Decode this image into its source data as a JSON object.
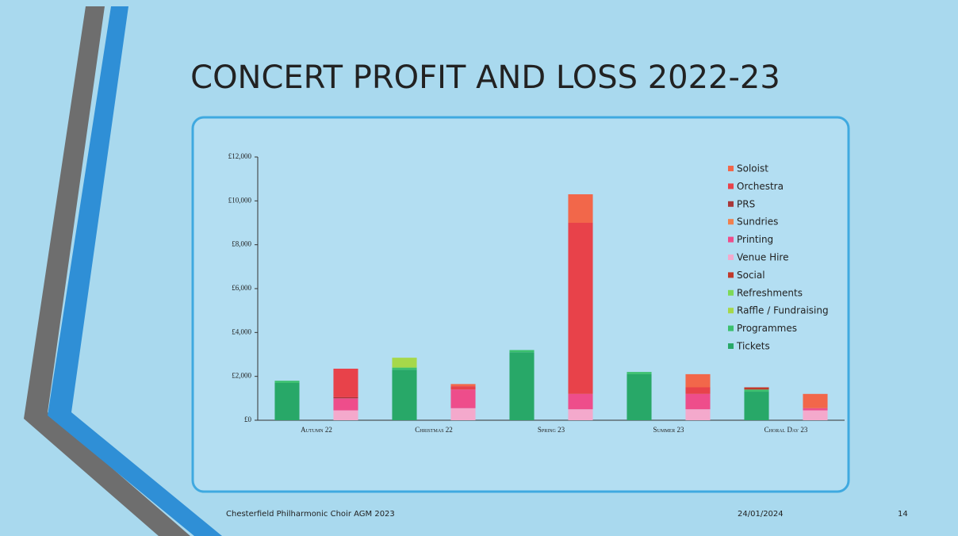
{
  "chart_data": {
    "type": "stacked_bar",
    "title": "CONCERT PROFIT AND LOSS 2022-23",
    "categories": [
      "Autumn 22",
      null,
      "Christmas 22",
      null,
      "Spring 23",
      null,
      "Summer 23",
      null,
      "Choral Day 23",
      null
    ],
    "series": [
      {
        "name": "Soloist",
        "color": "#f2674a",
        "values": [
          0,
          0,
          0,
          100,
          0,
          1300,
          0,
          600,
          0,
          650
        ]
      },
      {
        "name": "Orchestra",
        "color": "#e8424a",
        "values": [
          0,
          1300,
          0,
          150,
          0,
          7800,
          0,
          300,
          0,
          0
        ]
      },
      {
        "name": "PRS",
        "color": "#a8383a",
        "values": [
          0,
          50,
          0,
          0,
          0,
          0,
          0,
          0,
          0,
          0
        ]
      },
      {
        "name": "Sundries",
        "color": "#f0804e",
        "values": [
          0,
          0,
          0,
          0,
          0,
          0,
          0,
          0,
          0,
          0
        ]
      },
      {
        "name": "Printing",
        "color": "#ee4d8b",
        "values": [
          0,
          550,
          0,
          850,
          0,
          700,
          0,
          700,
          0,
          100
        ]
      },
      {
        "name": "Venue Hire",
        "color": "#f4a9cc",
        "values": [
          0,
          450,
          0,
          550,
          0,
          500,
          0,
          500,
          0,
          450
        ]
      },
      {
        "name": "Social",
        "color": "#c0392b",
        "values": [
          0,
          0,
          0,
          0,
          0,
          0,
          0,
          0,
          100,
          0
        ]
      },
      {
        "name": "Refreshments",
        "color": "#7ed957",
        "values": [
          0,
          0,
          0,
          0,
          0,
          0,
          0,
          0,
          0,
          0
        ]
      },
      {
        "name": "Raffle / Fundraising",
        "color": "#a6d84a",
        "values": [
          0,
          0,
          450,
          0,
          0,
          0,
          0,
          0,
          0,
          0
        ]
      },
      {
        "name": "Programmes",
        "color": "#3cc06e",
        "values": [
          100,
          0,
          100,
          0,
          100,
          0,
          100,
          0,
          100,
          0
        ]
      },
      {
        "name": "Tickets",
        "color": "#28a868",
        "values": [
          1700,
          0,
          2300,
          0,
          3100,
          0,
          2100,
          0,
          1300,
          0
        ]
      }
    ],
    "ylim": [
      0,
      12000
    ],
    "yticks": [
      {
        "value": 0,
        "label": "£0"
      },
      {
        "value": 2000,
        "label": "£2,000"
      },
      {
        "value": 4000,
        "label": "£4,000"
      },
      {
        "value": 6000,
        "label": "£6,000"
      },
      {
        "value": 8000,
        "label": "£8,000"
      },
      {
        "value": 10000,
        "label": "£10,000"
      },
      {
        "value": 12000,
        "label": "£12,000"
      }
    ],
    "grid": false,
    "legend": "right"
  },
  "footer": {
    "left": "Chesterfield Philharmonic Choir AGM 2023",
    "date": "24/01/2024",
    "page": 14
  }
}
